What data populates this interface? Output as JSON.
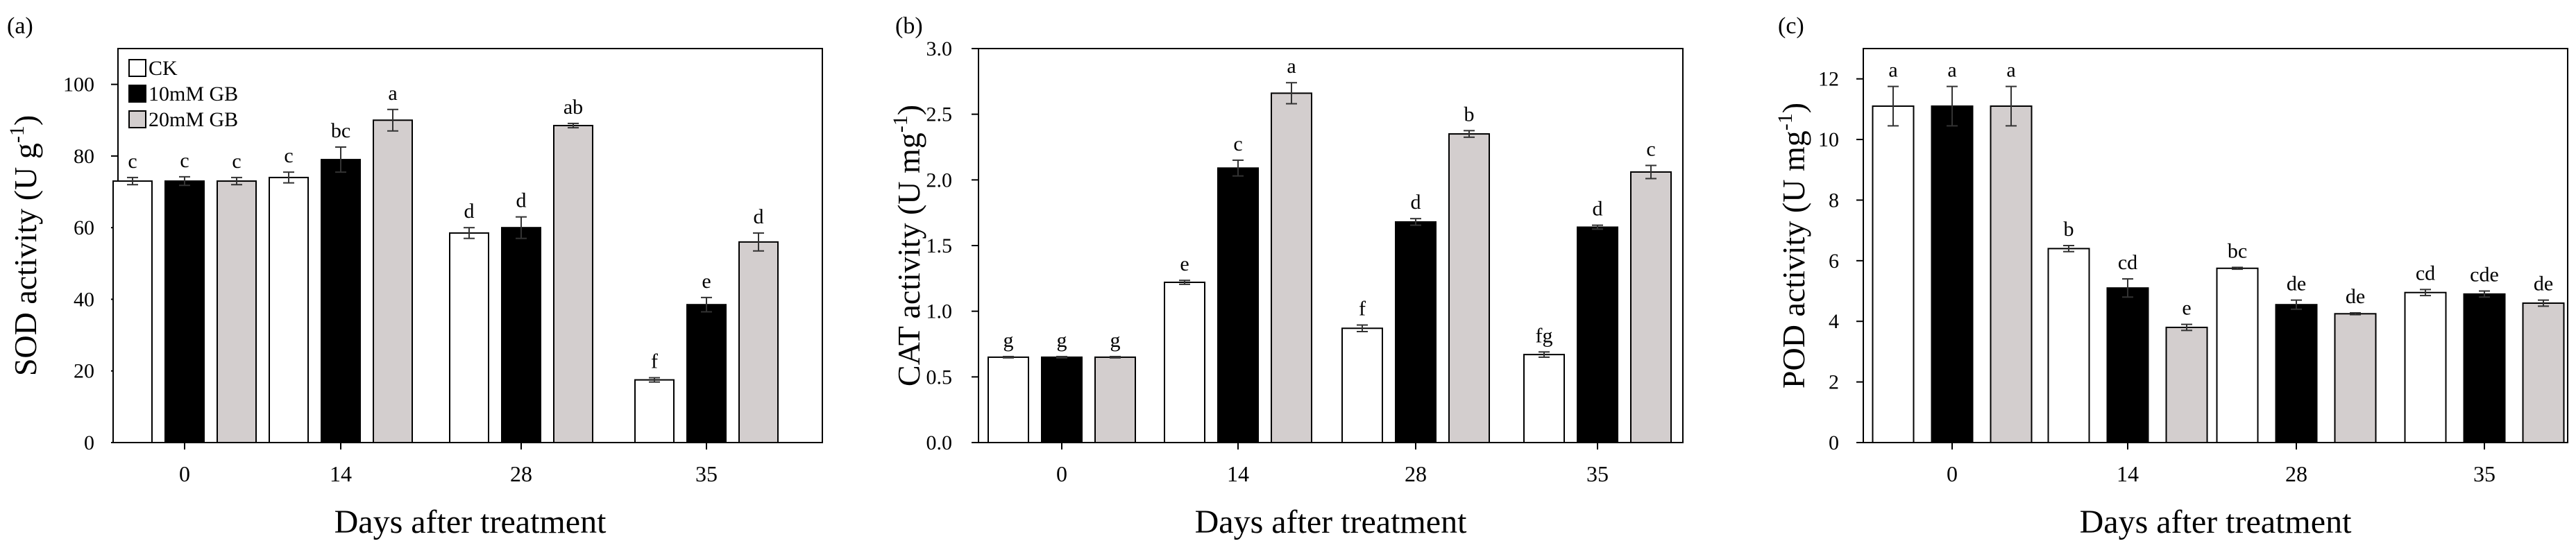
{
  "colors": {
    "CK": "#ffffff",
    "10mM GB": "#000000",
    "20mM GB": "#d3cece",
    "stroke": "#000000"
  },
  "chart_data": [
    {
      "type": "bar",
      "panel_label": "(a)",
      "categories": [
        "0",
        "14",
        "28",
        "35"
      ],
      "xlabel": "Days after treatment",
      "ylabel": "SOD activity (U g",
      "ylabel_sup": "-1",
      "ylabel_end": ")",
      "ylim": [
        0,
        110
      ],
      "yticks": [
        0,
        20,
        40,
        60,
        80,
        100
      ],
      "ytick_labels": [
        "0",
        "20",
        "40",
        "60",
        "80",
        "100"
      ],
      "legend": {
        "placement": "top-left",
        "entries": [
          "CK",
          "10mM GB",
          "20mM GB"
        ]
      },
      "series": [
        {
          "name": "CK",
          "values": [
            73,
            74,
            58.5,
            17.5
          ],
          "errors": [
            1.0,
            1.5,
            1.5,
            0.6
          ],
          "letters": [
            "c",
            "c",
            "d",
            "f"
          ]
        },
        {
          "name": "10mM GB",
          "values": [
            73,
            79,
            60,
            38.5
          ],
          "errors": [
            1.2,
            3.5,
            3,
            2
          ],
          "letters": [
            "c",
            "bc",
            "d",
            "e"
          ]
        },
        {
          "name": "20mM GB",
          "values": [
            73,
            90,
            88.5,
            56
          ],
          "errors": [
            1.0,
            3,
            0.6,
            2.5
          ],
          "letters": [
            "c",
            "a",
            "ab",
            "d"
          ]
        }
      ]
    },
    {
      "type": "bar",
      "panel_label": "(b)",
      "categories": [
        "0",
        "14",
        "28",
        "35"
      ],
      "xlabel": "Days after treatment",
      "ylabel": "CAT activity (U mg",
      "ylabel_sup": "-1",
      "ylabel_end": ")",
      "ylim": [
        0,
        3.0
      ],
      "yticks": [
        0,
        0.5,
        1.0,
        1.5,
        2.0,
        2.5,
        3.0
      ],
      "ytick_labels": [
        "0.0",
        "0.5",
        "1.0",
        "1.5",
        "2.0",
        "2.5",
        "3.0"
      ],
      "series": [
        {
          "name": "CK",
          "values": [
            0.65,
            1.22,
            0.87,
            0.67
          ],
          "errors": [
            0.005,
            0.015,
            0.025,
            0.02
          ],
          "letters": [
            "g",
            "e",
            "f",
            "fg"
          ]
        },
        {
          "name": "10mM GB",
          "values": [
            0.65,
            2.09,
            1.68,
            1.64
          ],
          "errors": [
            0.005,
            0.06,
            0.025,
            0.015
          ],
          "letters": [
            "g",
            "c",
            "d",
            "d"
          ]
        },
        {
          "name": "20mM GB",
          "values": [
            0.65,
            2.66,
            2.35,
            2.06
          ],
          "errors": [
            0.005,
            0.08,
            0.025,
            0.05
          ],
          "letters": [
            "g",
            "a",
            "b",
            "c"
          ]
        }
      ]
    },
    {
      "type": "bar",
      "panel_label": "(c)",
      "categories": [
        "0",
        "14",
        "28",
        "35"
      ],
      "xlabel": "Days after treatment",
      "ylabel": "POD activity (U mg",
      "ylabel_sup": "-1",
      "ylabel_end": ")",
      "ylim": [
        0,
        13
      ],
      "yticks": [
        0,
        2,
        4,
        6,
        8,
        10,
        12
      ],
      "ytick_labels": [
        "0",
        "2",
        "4",
        "6",
        "8",
        "10",
        "12"
      ],
      "series": [
        {
          "name": "CK",
          "values": [
            11.1,
            6.4,
            5.75,
            4.95
          ],
          "errors": [
            0.65,
            0.1,
            0.03,
            0.1
          ],
          "letters": [
            "a",
            "b",
            "bc",
            "cd"
          ]
        },
        {
          "name": "10mM GB",
          "values": [
            11.1,
            5.1,
            4.55,
            4.9
          ],
          "errors": [
            0.65,
            0.3,
            0.15,
            0.1
          ],
          "letters": [
            "a",
            "cd",
            "de",
            "cde"
          ]
        },
        {
          "name": "20mM GB",
          "values": [
            11.1,
            3.8,
            4.25,
            4.6
          ],
          "errors": [
            0.65,
            0.1,
            0.03,
            0.1
          ],
          "letters": [
            "a",
            "e",
            "de",
            "de"
          ]
        }
      ]
    }
  ]
}
